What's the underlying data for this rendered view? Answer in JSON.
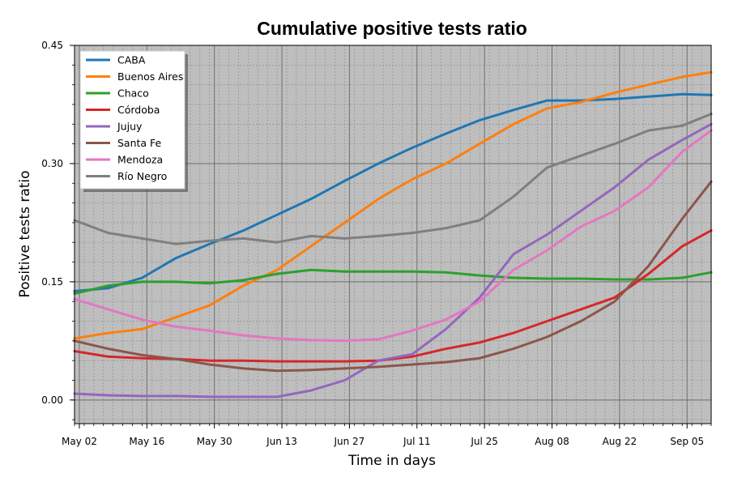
{
  "chart_data": {
    "type": "line",
    "title": "Cumulative positive tests ratio",
    "xlabel": "Time in days",
    "ylabel": "Positive tests ratio",
    "x_range": [
      "2020-05-01",
      "2020-09-10"
    ],
    "ylim": [
      -0.03,
      0.45
    ],
    "y_ticks": [
      0.0,
      0.15,
      0.3,
      0.45
    ],
    "y_tick_labels": [
      "0.00",
      "0.15",
      "0.30",
      "0.45"
    ],
    "x_ticks": [
      "2020-05-02",
      "2020-05-16",
      "2020-05-30",
      "2020-06-13",
      "2020-06-27",
      "2020-07-11",
      "2020-07-25",
      "2020-08-08",
      "2020-08-22",
      "2020-09-05"
    ],
    "x_tick_labels": [
      "May 02",
      "May 16",
      "May 30",
      "Jun 13",
      "Jun 27",
      "Jul 11",
      "Jul 25",
      "Aug 08",
      "Aug 22",
      "Sep 05"
    ],
    "grid": true,
    "legend_position": "top-left",
    "x": [
      "2020-05-01",
      "2020-05-08",
      "2020-05-15",
      "2020-05-22",
      "2020-05-29",
      "2020-06-05",
      "2020-06-12",
      "2020-06-19",
      "2020-06-26",
      "2020-07-03",
      "2020-07-10",
      "2020-07-17",
      "2020-07-24",
      "2020-07-31",
      "2020-08-07",
      "2020-08-14",
      "2020-08-21",
      "2020-08-28",
      "2020-09-04",
      "2020-09-10"
    ],
    "series": [
      {
        "name": "CABA",
        "color": "#1f77b4",
        "values": [
          0.138,
          0.142,
          0.155,
          0.18,
          0.198,
          0.215,
          0.235,
          0.255,
          0.278,
          0.3,
          0.32,
          0.338,
          0.355,
          0.368,
          0.38,
          0.38,
          0.382,
          0.385,
          0.388,
          0.387
        ]
      },
      {
        "name": "Buenos Aires",
        "color": "#ff7f0e",
        "values": [
          0.078,
          0.085,
          0.09,
          0.105,
          0.12,
          0.145,
          0.165,
          0.195,
          0.225,
          0.255,
          0.28,
          0.3,
          0.325,
          0.35,
          0.37,
          0.378,
          0.39,
          0.4,
          0.41,
          0.416
        ]
      },
      {
        "name": "Chaco",
        "color": "#2ca02c",
        "values": [
          0.135,
          0.145,
          0.15,
          0.15,
          0.148,
          0.152,
          0.16,
          0.165,
          0.163,
          0.163,
          0.163,
          0.162,
          0.158,
          0.155,
          0.154,
          0.154,
          0.153,
          0.153,
          0.155,
          0.162
        ]
      },
      {
        "name": "Córdoba",
        "color": "#d62728",
        "values": [
          0.062,
          0.055,
          0.053,
          0.052,
          0.05,
          0.05,
          0.049,
          0.049,
          0.049,
          0.05,
          0.055,
          0.065,
          0.073,
          0.085,
          0.1,
          0.115,
          0.13,
          0.16,
          0.195,
          0.215
        ]
      },
      {
        "name": "Jujuy",
        "color": "#9467bd",
        "values": [
          0.008,
          0.006,
          0.005,
          0.005,
          0.004,
          0.004,
          0.004,
          0.012,
          0.025,
          0.05,
          0.058,
          0.09,
          0.13,
          0.185,
          0.21,
          0.24,
          0.27,
          0.305,
          0.33,
          0.35
        ]
      },
      {
        "name": "Santa Fe",
        "color": "#8c564b",
        "values": [
          0.075,
          0.065,
          0.057,
          0.052,
          0.045,
          0.04,
          0.037,
          0.038,
          0.04,
          0.042,
          0.045,
          0.048,
          0.053,
          0.065,
          0.08,
          0.1,
          0.125,
          0.17,
          0.23,
          0.277
        ]
      },
      {
        "name": "Mendoza",
        "color": "#e377c2",
        "values": [
          0.128,
          0.115,
          0.102,
          0.093,
          0.088,
          0.082,
          0.078,
          0.076,
          0.075,
          0.077,
          0.088,
          0.102,
          0.125,
          0.165,
          0.19,
          0.22,
          0.24,
          0.27,
          0.315,
          0.342
        ]
      },
      {
        "name": "Río Negro",
        "color": "#7f7f7f",
        "values": [
          0.228,
          0.212,
          0.205,
          0.198,
          0.202,
          0.205,
          0.2,
          0.208,
          0.205,
          0.208,
          0.212,
          0.218,
          0.228,
          0.258,
          0.295,
          0.31,
          0.325,
          0.342,
          0.348,
          0.363
        ]
      }
    ]
  }
}
